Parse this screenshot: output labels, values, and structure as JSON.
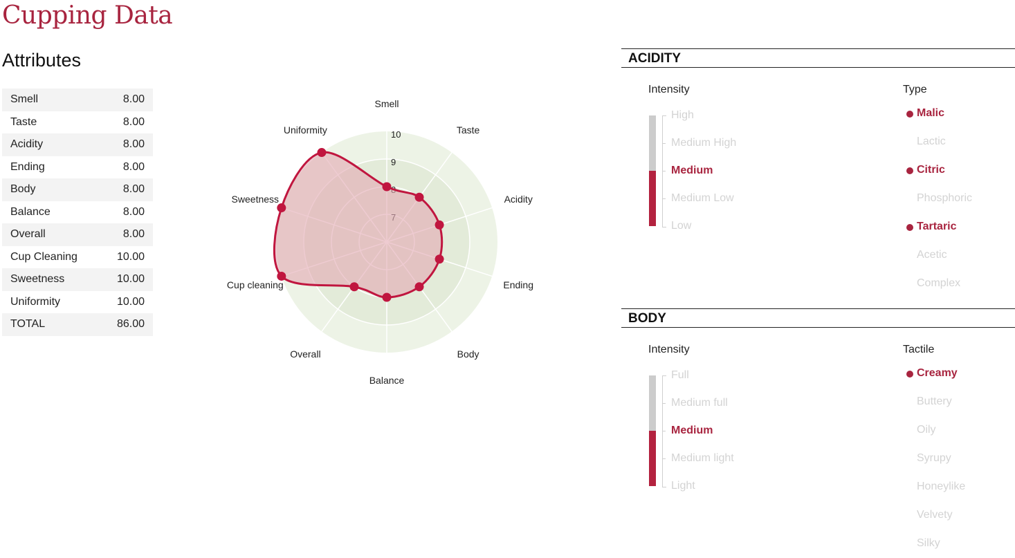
{
  "page": {
    "title": "Cupping Data",
    "section": "Attributes"
  },
  "attributes": [
    {
      "name": "Smell",
      "value": "8.00"
    },
    {
      "name": "Taste",
      "value": "8.00"
    },
    {
      "name": "Acidity",
      "value": "8.00"
    },
    {
      "name": "Ending",
      "value": "8.00"
    },
    {
      "name": "Body",
      "value": "8.00"
    },
    {
      "name": "Balance",
      "value": "8.00"
    },
    {
      "name": "Overall",
      "value": "8.00"
    },
    {
      "name": "Cup Cleaning",
      "value": "10.00"
    },
    {
      "name": "Sweetness",
      "value": "10.00"
    },
    {
      "name": "Uniformity",
      "value": "10.00"
    },
    {
      "name": "TOTAL",
      "value": "86.00"
    }
  ],
  "chart_data": {
    "type": "radar",
    "categories": [
      "Smell",
      "Taste",
      "Acidity",
      "Ending",
      "Body",
      "Balance",
      "Overall",
      "Cup cleaning",
      "Sweetness",
      "Uniformity"
    ],
    "series": [
      {
        "values": [
          8,
          8,
          8,
          8,
          8,
          8,
          8,
          10,
          10,
          10
        ]
      }
    ],
    "radial_range": [
      6,
      10
    ],
    "tick_labels": [
      "7",
      "8",
      "9",
      "10"
    ],
    "colors": {
      "line": "#c0163f",
      "fill": "#e3a9b2",
      "ring_outer": "#edf3e6",
      "ring_inner": "#e3ebd9"
    }
  },
  "acidity": {
    "header": "ACIDITY",
    "intensity_label": "Intensity",
    "type_label": "Type",
    "levels": [
      "High",
      "Medium High",
      "Medium",
      "Medium Low",
      "Low"
    ],
    "selected_level": "Medium",
    "level_fraction": 0.5,
    "types": [
      {
        "label": "Malic",
        "selected": true
      },
      {
        "label": "Lactic",
        "selected": false
      },
      {
        "label": "Citric",
        "selected": true
      },
      {
        "label": "Phosphoric",
        "selected": false
      },
      {
        "label": "Tartaric",
        "selected": true
      },
      {
        "label": "Acetic",
        "selected": false
      },
      {
        "label": "Complex",
        "selected": false
      }
    ]
  },
  "body": {
    "header": "BODY",
    "intensity_label": "Intensity",
    "tactile_label": "Tactile",
    "levels": [
      "Full",
      "Medium full",
      "Medium",
      "Medium light",
      "Light"
    ],
    "selected_level": "Medium",
    "level_fraction": 0.5,
    "tactile": [
      {
        "label": "Creamy",
        "selected": true
      },
      {
        "label": "Buttery",
        "selected": false
      },
      {
        "label": "Oily",
        "selected": false
      },
      {
        "label": "Syrupy",
        "selected": false
      },
      {
        "label": "Honeylike",
        "selected": false
      },
      {
        "label": "Velvety",
        "selected": false
      },
      {
        "label": "Silky",
        "selected": false
      }
    ]
  },
  "colors": {
    "accent": "#a8243f",
    "muted_text": "#d3d3d3"
  }
}
